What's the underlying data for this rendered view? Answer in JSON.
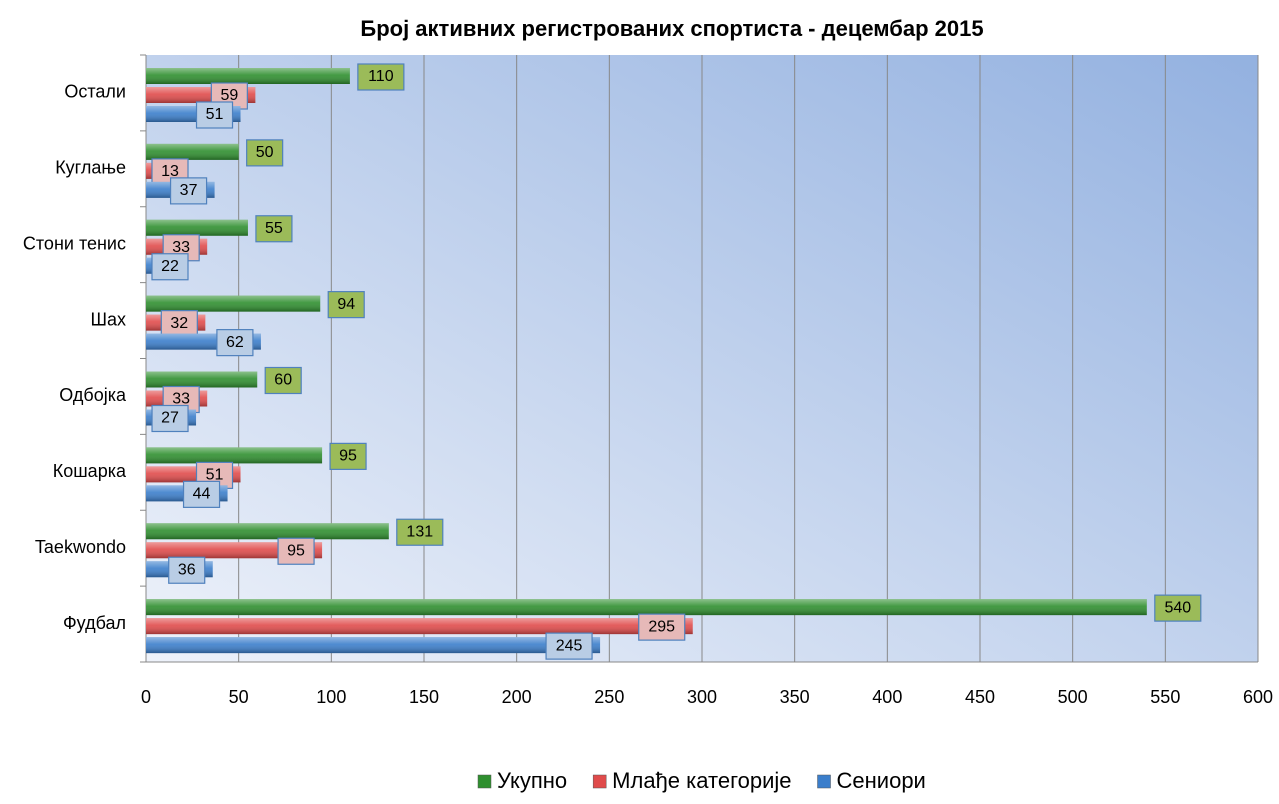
{
  "chart_data": {
    "type": "bar",
    "orientation": "horizontal",
    "title": "Број активних регистрованих спортиста  - децембар 2015",
    "categories": [
      "Фудбал",
      "Taekwondo",
      "Кошарка",
      "Одбојка",
      "Шах",
      "Стони тенис",
      "Куглање",
      "Остали"
    ],
    "series": [
      {
        "name": "Укупно",
        "color": "#2f8f2f",
        "label_color": "#9bbb59",
        "values": [
          540,
          131,
          95,
          60,
          94,
          55,
          50,
          110
        ]
      },
      {
        "name": "Млађе категорије",
        "color": "#e04b4b",
        "label_color": "#e6b9b8",
        "values": [
          295,
          95,
          51,
          33,
          32,
          33,
          13,
          59
        ]
      },
      {
        "name": "Сениори",
        "color": "#3b7ecb",
        "label_color": "#b9cde5",
        "values": [
          245,
          36,
          44,
          27,
          62,
          22,
          37,
          51
        ]
      }
    ],
    "xlim": [
      0,
      600
    ],
    "xticks": [
      0,
      50,
      100,
      150,
      200,
      250,
      300,
      350,
      400,
      450,
      500,
      550,
      600
    ],
    "grid": true,
    "legend": "bottom"
  }
}
